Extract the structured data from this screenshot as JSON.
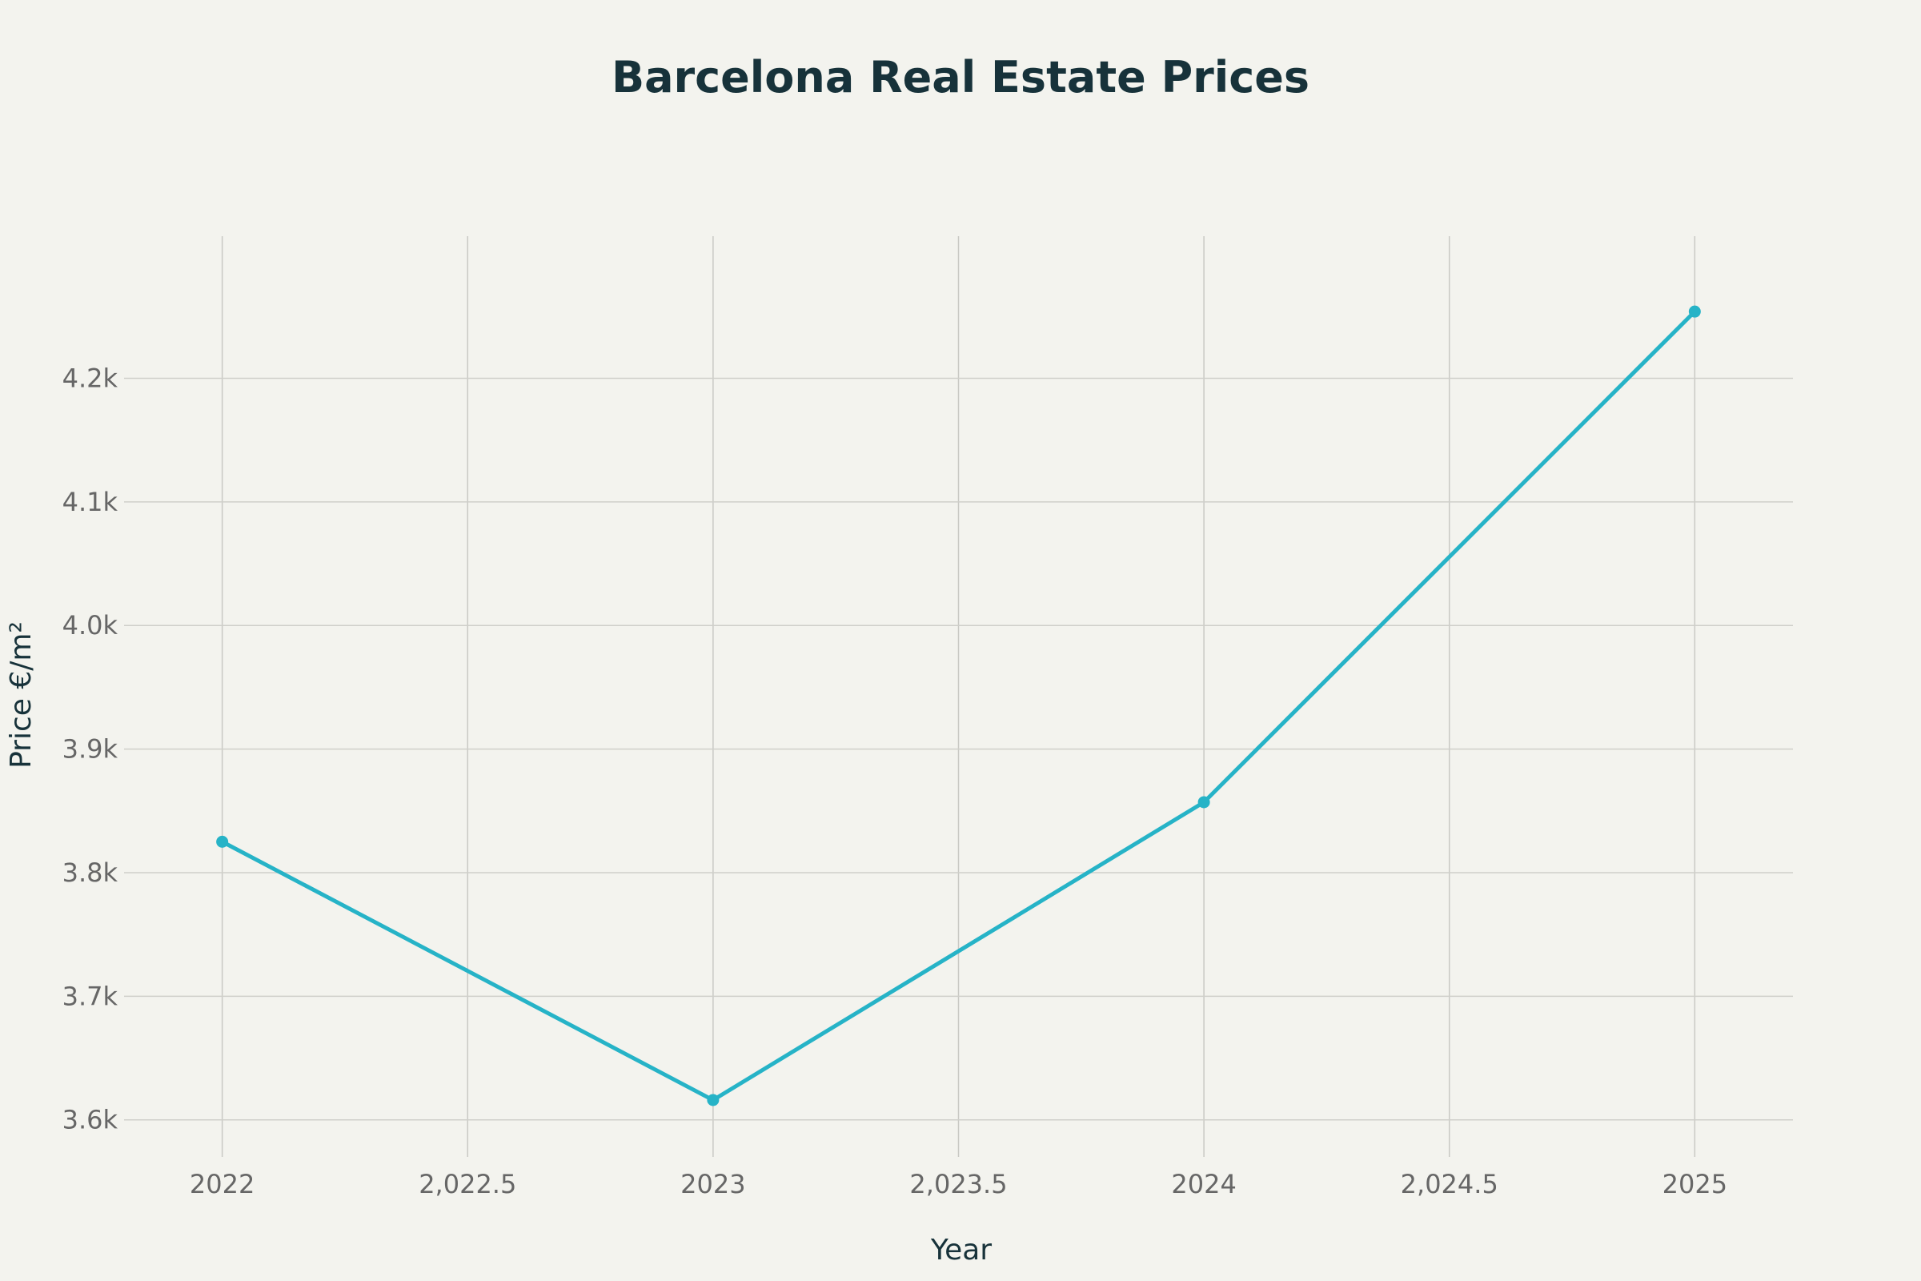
{
  "chart_data": {
    "type": "line",
    "title": "Barcelona Real Estate Prices",
    "xlabel": "Year",
    "ylabel": "Price €/m²",
    "x": [
      2022,
      2023,
      2024,
      2025
    ],
    "series": [
      {
        "name": "Price €/m²",
        "values": [
          3825,
          3616,
          3857,
          4254
        ]
      }
    ],
    "xlim": [
      2021.8,
      2025.2
    ],
    "ylim": [
      3570,
      4315
    ],
    "x_ticks": [
      2022,
      2022.5,
      2023,
      2023.5,
      2024,
      2024.5,
      2025
    ],
    "x_tick_labels": [
      "2022",
      "2,022.5",
      "2023",
      "2,023.5",
      "2024",
      "2,024.5",
      "2025"
    ],
    "y_ticks": [
      3600,
      3700,
      3800,
      3900,
      4000,
      4100,
      4200
    ],
    "y_tick_labels": [
      "3.6k",
      "3.7k",
      "3.8k",
      "3.9k",
      "4.0k",
      "4.1k",
      "4.2k"
    ],
    "grid": true,
    "legend": "none",
    "line_color": "#26b3c7"
  }
}
